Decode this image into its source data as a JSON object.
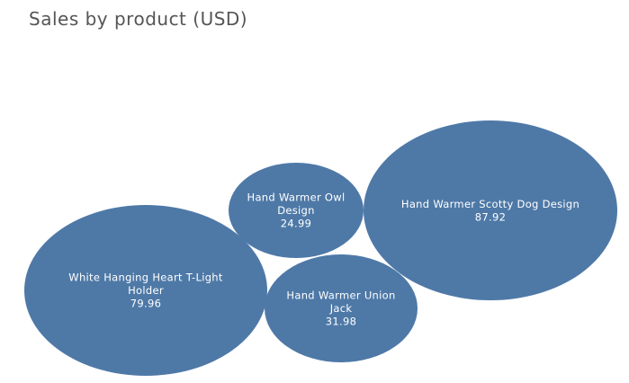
{
  "chart_data": {
    "type": "bubble",
    "title": "Sales by product (USD)",
    "color": "#4e79a7",
    "items": [
      {
        "name": "Hand Warmer Scotty Dog Design",
        "value": 87.92
      },
      {
        "name": "White Hanging Heart T-Light Holder",
        "value": 79.96
      },
      {
        "name": "Hand Warmer Union Jack",
        "value": 31.98
      },
      {
        "name": "Hand Warmer Owl Design",
        "value": 24.99
      }
    ]
  }
}
